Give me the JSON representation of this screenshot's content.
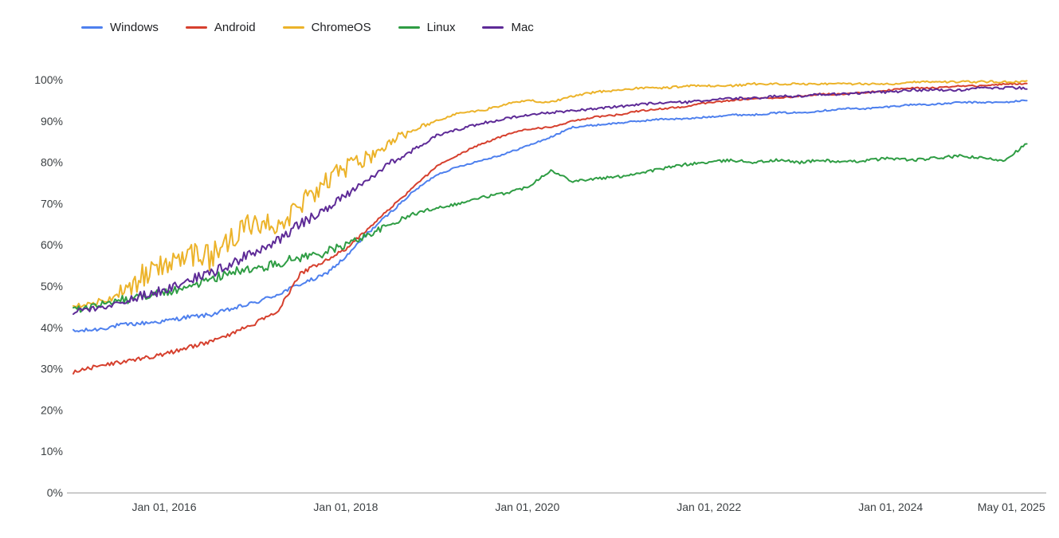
{
  "page": {
    "background": "#ffffff"
  },
  "chart_data": {
    "type": "line",
    "grid": false,
    "legend_position": "top",
    "xlabel": "",
    "ylabel": "",
    "xlim": [
      2015.0,
      2025.6
    ],
    "ylim": [
      0,
      100
    ],
    "x_ticks": [
      {
        "value": 2016.0,
        "label": "Jan 01, 2016"
      },
      {
        "value": 2018.0,
        "label": "Jan 01, 2018"
      },
      {
        "value": 2020.0,
        "label": "Jan 01, 2020"
      },
      {
        "value": 2022.0,
        "label": "Jan 01, 2022"
      },
      {
        "value": 2024.0,
        "label": "Jan 01, 2024"
      },
      {
        "value": 2025.33,
        "label": "May 01, 2025"
      }
    ],
    "y_ticks": [
      {
        "value": 0,
        "label": "0%"
      },
      {
        "value": 10,
        "label": "10%"
      },
      {
        "value": 20,
        "label": "20%"
      },
      {
        "value": 30,
        "label": "30%"
      },
      {
        "value": 40,
        "label": "40%"
      },
      {
        "value": 50,
        "label": "50%"
      },
      {
        "value": 60,
        "label": "60%"
      },
      {
        "value": 70,
        "label": "70%"
      },
      {
        "value": 80,
        "label": "80%"
      },
      {
        "value": 90,
        "label": "90%"
      },
      {
        "value": 100,
        "label": "100%"
      }
    ],
    "x_quarterly": [
      2015.0,
      2015.25,
      2015.5,
      2015.75,
      2016.0,
      2016.25,
      2016.5,
      2016.75,
      2017.0,
      2017.25,
      2017.5,
      2017.75,
      2018.0,
      2018.25,
      2018.5,
      2018.75,
      2019.0,
      2019.25,
      2019.5,
      2019.75,
      2020.0,
      2020.25,
      2020.5,
      2020.75,
      2021.0,
      2021.25,
      2021.5,
      2021.75,
      2022.0,
      2022.25,
      2022.5,
      2022.75,
      2023.0,
      2023.25,
      2023.5,
      2023.75,
      2024.0,
      2024.25,
      2024.5,
      2024.75,
      2025.0,
      2025.25,
      2025.5
    ],
    "series": [
      {
        "name": "Windows",
        "color": "#4e80ee",
        "noise_early": 0.5,
        "noise_late": 0.2,
        "values": [
          39,
          39.5,
          40.5,
          41,
          41.5,
          42.5,
          43,
          44.5,
          46,
          48,
          50.5,
          52.5,
          57,
          63,
          68,
          73,
          77,
          79,
          80.5,
          82,
          84,
          86,
          88.5,
          89,
          89.5,
          90,
          90.5,
          90.5,
          91,
          91.5,
          91.5,
          92,
          92,
          92.5,
          93,
          93,
          93.5,
          94,
          94,
          94.5,
          94.5,
          94.5,
          95
        ]
      },
      {
        "name": "Android",
        "color": "#d6402e",
        "noise_early": 0.5,
        "noise_late": 0.2,
        "values": [
          29,
          30.5,
          31.5,
          32.5,
          33.5,
          35,
          36.5,
          38.5,
          41,
          44,
          53,
          56,
          59,
          64,
          69,
          74,
          79,
          82,
          84.5,
          86.5,
          88,
          88.5,
          90,
          91,
          91.5,
          92.5,
          93,
          93.5,
          94.5,
          95,
          95.5,
          95.5,
          96,
          96.5,
          96.5,
          97,
          97.5,
          98,
          98,
          98.5,
          98.5,
          99,
          99
        ]
      },
      {
        "name": "ChromeOS",
        "color": "#ecb32a",
        "noise_early": 3.2,
        "noise_late": 0.25,
        "values": [
          45,
          46,
          47.5,
          52,
          55,
          58,
          57,
          61,
          66,
          65,
          69,
          74,
          79,
          81,
          85,
          88,
          90,
          92,
          92.5,
          94,
          95,
          94.5,
          96,
          97,
          97.5,
          98,
          98,
          98.5,
          98.5,
          98.5,
          99,
          99,
          99,
          99,
          99,
          99,
          99,
          99.5,
          99.5,
          99.5,
          99.5,
          99.5,
          99.5
        ]
      },
      {
        "name": "Linux",
        "color": "#2f9d44",
        "noise_early": 1.1,
        "noise_late": 0.35,
        "values": [
          44,
          45.5,
          46.5,
          47.5,
          48.5,
          50,
          51.5,
          53.5,
          54,
          55.5,
          57,
          58,
          60,
          62.5,
          65,
          67.5,
          69,
          70,
          71.5,
          72.5,
          74,
          78,
          75.5,
          76,
          76.5,
          77.5,
          78.5,
          79.5,
          80,
          80.5,
          80,
          80.5,
          80,
          80.5,
          80,
          80.5,
          81,
          80.5,
          81,
          81.5,
          81,
          80.5,
          84.5
        ]
      },
      {
        "name": "Mac",
        "color": "#5e2b97",
        "noise_early": 1.2,
        "noise_late": 0.3,
        "values": [
          43.5,
          44.5,
          46,
          47.5,
          49,
          51.5,
          53,
          55.5,
          58.5,
          61,
          65,
          68.5,
          72,
          76,
          80,
          83,
          86.5,
          88,
          89.5,
          90.5,
          91.5,
          92,
          92.5,
          93,
          93.5,
          94,
          94.5,
          94.5,
          95,
          95.5,
          95.5,
          96,
          96,
          96.5,
          96.5,
          97,
          97,
          97.5,
          97.5,
          97.5,
          98,
          98,
          98
        ]
      }
    ]
  }
}
